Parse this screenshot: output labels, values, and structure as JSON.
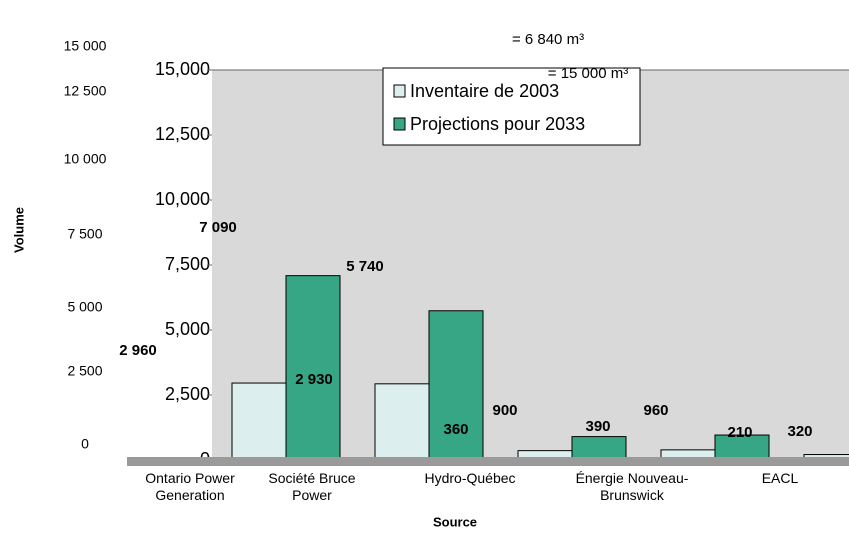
{
  "chart_data": {
    "type": "bar",
    "categories": [
      "Ontario Power Generation",
      "Société Bruce Power",
      "Hydro-Québec",
      "Énergie Nouveau-Brunswick",
      "EACL"
    ],
    "series": [
      {
        "name": "Inventaire de 2003",
        "color": "#dcefee",
        "values": [
          2960,
          2930,
          360,
          390,
          210
        ],
        "value_labels": [
          "2 960",
          "2 930",
          "360",
          "390",
          "210"
        ]
      },
      {
        "name": "Projections pour 2033",
        "color": "#36a685",
        "values": [
          7090,
          5740,
          900,
          960,
          320
        ],
        "value_labels": [
          "7 090",
          "5 740",
          "900",
          "960",
          "320"
        ]
      }
    ],
    "ylim": [
      0,
      15000
    ],
    "yticks": [
      {
        "value": 0,
        "label": "0"
      },
      {
        "value": 2500,
        "label": "2,500"
      },
      {
        "value": 5000,
        "label": "5,000"
      },
      {
        "value": 7500,
        "label": "7,500"
      },
      {
        "value": 10000,
        "label": "10,000"
      },
      {
        "value": 12500,
        "label": "12,500"
      },
      {
        "value": 15000,
        "label": "15,000"
      }
    ],
    "outer_yticks": [
      {
        "value": 0,
        "label": "0"
      },
      {
        "value": 2500,
        "label": "2 500"
      },
      {
        "value": 5000,
        "label": "5 000"
      },
      {
        "value": 7500,
        "label": "7 500"
      },
      {
        "value": 10000,
        "label": "10 000"
      },
      {
        "value": 12500,
        "label": "12 500"
      },
      {
        "value": 15000,
        "label": "15 000"
      }
    ],
    "y_label": "Volume",
    "x_label": "Source",
    "annotations": [
      "= 6 840 m³",
      "= 15 000 m³"
    ],
    "legend": "top"
  }
}
